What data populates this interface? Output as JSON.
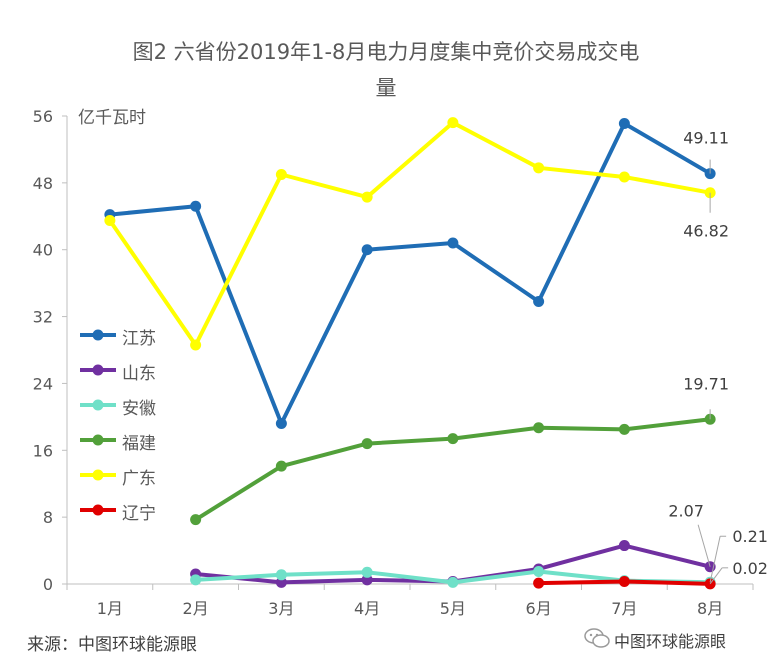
{
  "chart_data": {
    "type": "line",
    "title_line1": "图2 六省份2019年1-8月电力月度集中竞价交易成交电",
    "title_line2": "量",
    "ylabel": "亿千瓦时",
    "xlabel": "",
    "ylim": [
      0,
      56
    ],
    "yticks": [
      "0",
      "8",
      "16",
      "24",
      "32",
      "40",
      "48",
      "56"
    ],
    "categories": [
      "1月",
      "2月",
      "3月",
      "4月",
      "5月",
      "6月",
      "7月",
      "8月"
    ],
    "grid": false,
    "legend_position": "left",
    "series": [
      {
        "name": "江苏",
        "color": "#1f6db5",
        "values": [
          44.2,
          45.2,
          19.2,
          40.0,
          40.8,
          33.8,
          55.1,
          49.11
        ]
      },
      {
        "name": "山东",
        "color": "#7030a0",
        "values": [
          null,
          1.2,
          0.2,
          0.5,
          0.3,
          1.8,
          4.6,
          2.07
        ]
      },
      {
        "name": "安徽",
        "color": "#6fe0c8",
        "values": [
          null,
          0.5,
          1.1,
          1.4,
          0.2,
          1.5,
          0.4,
          0.21
        ]
      },
      {
        "name": "福建",
        "color": "#52a03a",
        "values": [
          null,
          7.7,
          14.1,
          16.8,
          17.4,
          18.7,
          18.5,
          19.71
        ]
      },
      {
        "name": "广东",
        "color": "#ffff00",
        "values": [
          43.5,
          28.6,
          49.0,
          46.3,
          55.2,
          49.8,
          48.7,
          46.82
        ]
      },
      {
        "name": "辽宁",
        "color": "#e00000",
        "values": [
          null,
          null,
          null,
          null,
          null,
          0.1,
          0.3,
          0.02
        ]
      }
    ],
    "data_labels": [
      {
        "series": "江苏",
        "category": "8月",
        "text": "49.11"
      },
      {
        "series": "广东",
        "category": "8月",
        "text": "46.82"
      },
      {
        "series": "福建",
        "category": "8月",
        "text": "19.71"
      },
      {
        "series": "山东",
        "category": "8月",
        "text": "2.07"
      },
      {
        "series": "安徽",
        "category": "8月",
        "text": "0.21"
      },
      {
        "series": "辽宁",
        "category": "8月",
        "text": "0.02"
      }
    ]
  },
  "source": "来源：中图环球能源眼",
  "watermark": "中图环球能源眼"
}
